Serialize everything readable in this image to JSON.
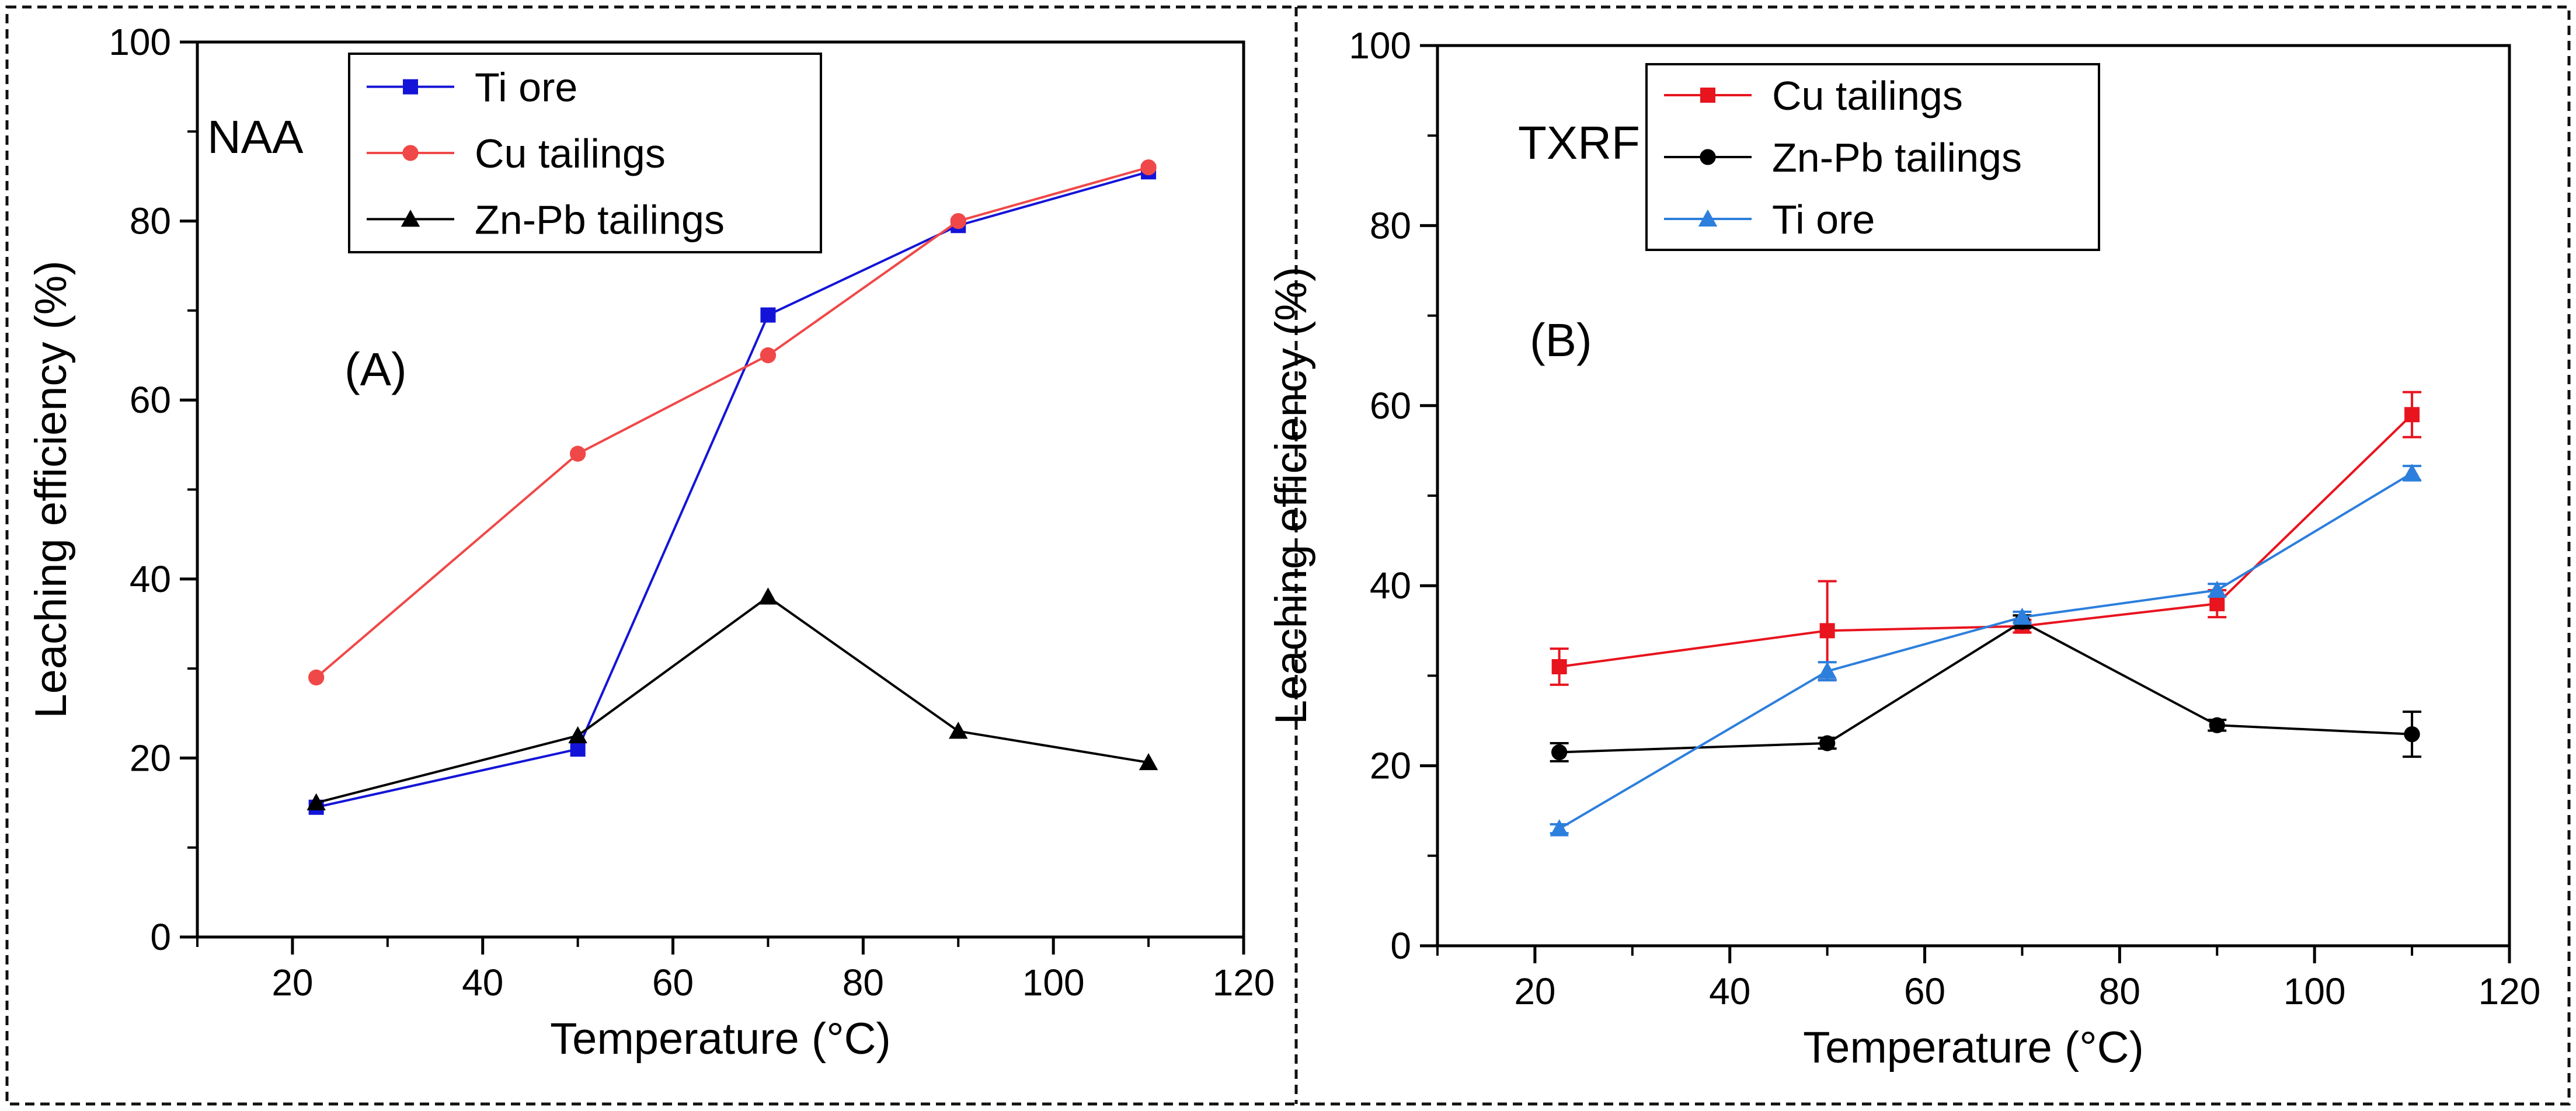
{
  "chart_data": [
    {
      "type": "line",
      "panel_label": "(A)",
      "method_label": "NAA",
      "xlabel": "Temperature (°C)",
      "ylabel": "Leaching efficiency (%)",
      "xlim": [
        10,
        120
      ],
      "ylim": [
        0,
        100
      ],
      "xticks": [
        20,
        40,
        60,
        80,
        100,
        120
      ],
      "yticks": [
        0,
        20,
        40,
        60,
        80,
        100
      ],
      "xtick_labels": [
        "20",
        "40",
        "60",
        "80",
        "100",
        "120"
      ],
      "ytick_labels": [
        "0",
        "20",
        "40",
        "60",
        "80",
        "100"
      ],
      "grid": false,
      "legend_position": "top-center",
      "series": [
        {
          "name": "Ti ore",
          "color": "#1414d8",
          "marker": "square",
          "x": [
            22.5,
            50,
            70,
            90,
            110
          ],
          "y": [
            14.5,
            21,
            69.5,
            79.5,
            85.5
          ],
          "err": [
            0,
            0,
            0,
            0,
            0
          ]
        },
        {
          "name": "Cu tailings",
          "color": "#f04848",
          "marker": "circle",
          "x": [
            22.5,
            50,
            70,
            90,
            110
          ],
          "y": [
            29,
            54,
            65,
            80,
            86
          ],
          "err": [
            0,
            0,
            0,
            0,
            0
          ]
        },
        {
          "name": "Zn-Pb  tailings",
          "color": "#000000",
          "marker": "triangle",
          "x": [
            22.5,
            50,
            70,
            90,
            110
          ],
          "y": [
            15,
            22.5,
            38,
            23,
            19.5
          ],
          "err": [
            0,
            0,
            0,
            0,
            0
          ]
        }
      ]
    },
    {
      "type": "line",
      "panel_label": "(B)",
      "method_label": "TXRF",
      "xlabel": "Temperature (°C)",
      "ylabel": "Leaching efficiency (%)",
      "xlim": [
        10,
        120
      ],
      "ylim": [
        0,
        100
      ],
      "xticks": [
        20,
        40,
        60,
        80,
        100,
        120
      ],
      "yticks": [
        0,
        20,
        40,
        60,
        80,
        100
      ],
      "xtick_labels": [
        "20",
        "40",
        "60",
        "80",
        "100",
        "120"
      ],
      "ytick_labels": [
        "0",
        "20",
        "40",
        "60",
        "80",
        "100"
      ],
      "grid": false,
      "legend_position": "top-center",
      "series": [
        {
          "name": "Cu tailings",
          "color": "#e8141e",
          "marker": "square",
          "x": [
            22.5,
            50,
            70,
            90,
            110
          ],
          "y": [
            31,
            35,
            35.5,
            38,
            59
          ],
          "err": [
            2,
            5.5,
            0.7,
            1.5,
            2.5
          ]
        },
        {
          "name": "Zn-Pb  tailings",
          "color": "#000000",
          "marker": "circle",
          "x": [
            22.5,
            50,
            70,
            90,
            110
          ],
          "y": [
            21.5,
            22.5,
            36,
            24.5,
            23.5
          ],
          "err": [
            1,
            0.6,
            0.7,
            0.6,
            2.5
          ]
        },
        {
          "name": "Ti ore",
          "color": "#2c7fdc",
          "marker": "triangle",
          "x": [
            22.5,
            50,
            70,
            90,
            110
          ],
          "y": [
            13,
            30.5,
            36.5,
            39.5,
            52.5
          ],
          "err": [
            0.5,
            1,
            0.6,
            0.7,
            0.8
          ]
        }
      ]
    }
  ]
}
